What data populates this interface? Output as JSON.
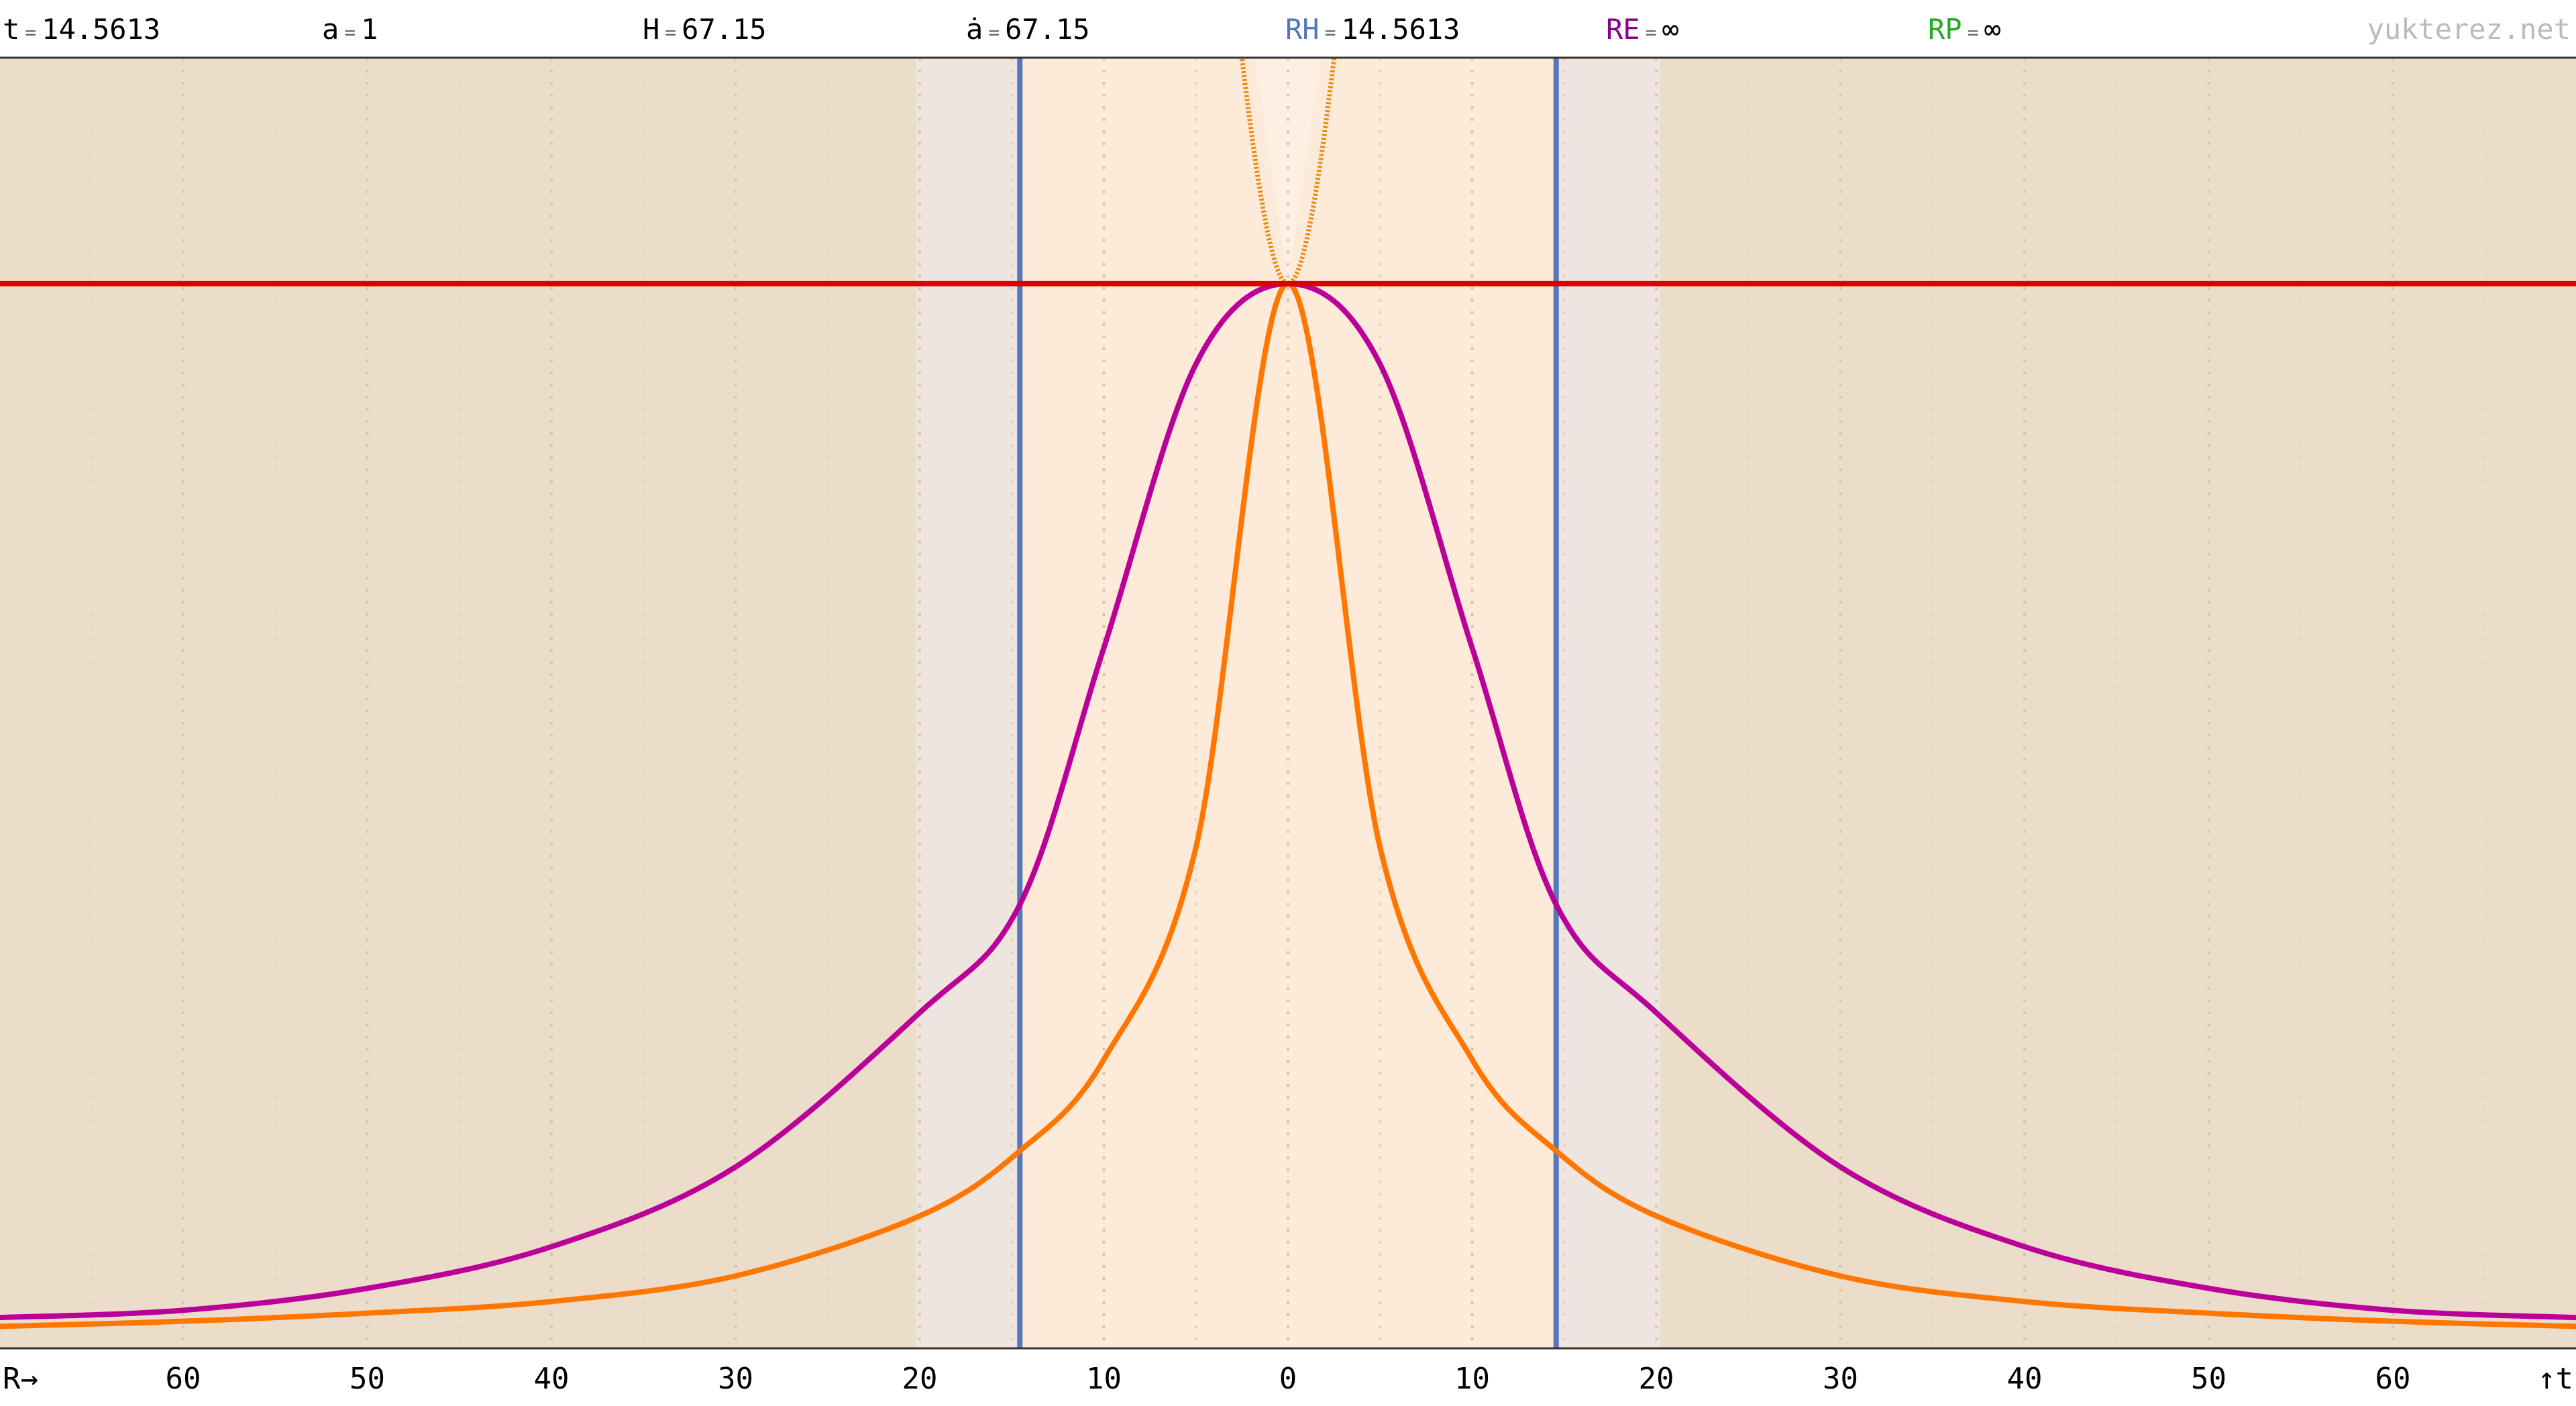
{
  "header": {
    "readouts": [
      {
        "id": "t",
        "label": "t",
        "eq": "=",
        "value": "14.5613",
        "color": "#000000"
      },
      {
        "id": "a",
        "label": "a",
        "eq": "=",
        "value": "1",
        "color": "#000000"
      },
      {
        "id": "H",
        "label": "H",
        "eq": "=",
        "value": "67.15",
        "color": "#000000"
      },
      {
        "id": "adot",
        "label": "ȧ",
        "eq": "=",
        "value": "67.15",
        "color": "#000000"
      },
      {
        "id": "RH",
        "label": "RH",
        "eq": "=",
        "value": "14.5613",
        "color": "#5577bb"
      },
      {
        "id": "RE",
        "label": "RE",
        "eq": "=",
        "value": "∞",
        "color": "#880088"
      },
      {
        "id": "RP",
        "label": "RP",
        "eq": "=",
        "value": "∞",
        "color": "#22aa22"
      }
    ],
    "site": "yukterez.net"
  },
  "chart_data": {
    "type": "line",
    "x_axis_label": "R→",
    "t_axis_label": "↑t",
    "xlim": [
      -70,
      70
    ],
    "x_ticks": [
      {
        "value": -60,
        "label": "60"
      },
      {
        "value": -50,
        "label": "50"
      },
      {
        "value": -40,
        "label": "40"
      },
      {
        "value": -30,
        "label": "30"
      },
      {
        "value": -20,
        "label": "20"
      },
      {
        "value": -10,
        "label": "10"
      },
      {
        "value": 0,
        "label": "0"
      },
      {
        "value": 10,
        "label": "10"
      },
      {
        "value": 20,
        "label": "20"
      },
      {
        "value": 30,
        "label": "30"
      },
      {
        "value": 40,
        "label": "40"
      },
      {
        "value": 50,
        "label": "50"
      },
      {
        "value": 60,
        "label": "60"
      }
    ],
    "grid_x": [
      -65,
      -60,
      -55,
      -50,
      -45,
      -40,
      -35,
      -30,
      -25,
      -20,
      -15,
      -10,
      -5,
      0,
      5,
      10,
      15,
      20,
      25,
      30,
      35,
      40,
      45,
      50,
      55,
      60,
      65
    ],
    "grid": "vertical dotted",
    "hubble_radius": 14.5613,
    "t_now": 14.5613,
    "regions": [
      {
        "name": "outer",
        "color": "#ecdcca"
      },
      {
        "name": "light-cone",
        "color": "#ede5de"
      },
      {
        "name": "hubble-sphere",
        "color": "#fdf0e3"
      },
      {
        "name": "past-light-cone-interior",
        "color": "#fde5cf"
      }
    ],
    "series": [
      {
        "id": "now-line",
        "color": "#dd0000",
        "style": "solid",
        "x": [
          -70,
          70
        ],
        "t": [
          14.5613,
          14.5613
        ]
      },
      {
        "id": "past-light-cone",
        "color": "#ff7700",
        "style": "solid",
        "x": [
          -70,
          -60,
          -50,
          -40,
          -30,
          -20,
          -14.56,
          -10,
          -5,
          0,
          5,
          10,
          14.56,
          20,
          30,
          40,
          50,
          60,
          70
        ],
        "t": [
          0.3,
          0.37,
          0.48,
          0.64,
          0.99,
          1.81,
          2.7,
          3.95,
          6.85,
          14.5613,
          6.85,
          3.95,
          2.7,
          1.81,
          0.99,
          0.64,
          0.48,
          0.37,
          0.3
        ]
      },
      {
        "id": "worldline-curve",
        "color": "#bb0099",
        "style": "solid",
        "x": [
          -70,
          -60,
          -50,
          -40,
          -30,
          -20,
          -14.56,
          -10,
          -5,
          0,
          5,
          10,
          14.56,
          20,
          30,
          40,
          50,
          60,
          70
        ],
        "t": [
          0.42,
          0.52,
          0.82,
          1.39,
          2.48,
          4.59,
          6.07,
          9.58,
          13.46,
          14.5613,
          13.46,
          9.58,
          6.07,
          4.59,
          2.48,
          1.39,
          0.82,
          0.52,
          0.42
        ]
      },
      {
        "id": "future-light-cone",
        "color": "#ee8811",
        "style": "dotted",
        "x": [
          -23.1,
          -20,
          -14.56,
          -10,
          -5,
          0,
          5,
          10,
          14.56,
          20,
          23.1
        ],
        "t": [
          86.93,
          65.32,
          48.26,
          34.28,
          23.19,
          14.5613,
          23.19,
          34.28,
          48.26,
          65.32,
          86.93
        ]
      },
      {
        "id": "hubble-radius-left",
        "color": "#5577bb",
        "style": "solid",
        "x": [
          -14.5613,
          -14.5613
        ],
        "t": [
          0,
          86.93
        ]
      },
      {
        "id": "hubble-radius-right",
        "color": "#5577bb",
        "style": "solid",
        "x": [
          14.5613,
          14.5613
        ],
        "t": [
          0,
          86.93
        ]
      }
    ]
  }
}
